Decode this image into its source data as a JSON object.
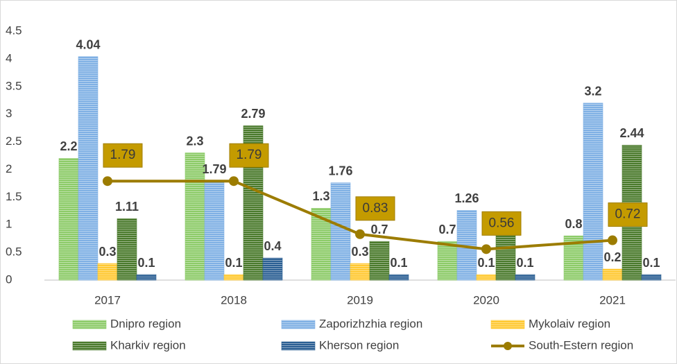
{
  "chart_data": {
    "type": "bar",
    "categories": [
      "2017",
      "2018",
      "2019",
      "2020",
      "2021"
    ],
    "series": [
      {
        "name": "Dnipro region",
        "color": "#8ccb68",
        "values": [
          2.2,
          2.3,
          1.3,
          0.7,
          0.8
        ]
      },
      {
        "name": "Zaporizhzhia region",
        "color": "#7fb0e4",
        "values": [
          4.04,
          1.79,
          1.76,
          1.26,
          3.2
        ]
      },
      {
        "name": "Mykolaiv region",
        "color": "#ffc830",
        "values": [
          0.3,
          0.1,
          0.3,
          0.1,
          0.2
        ]
      },
      {
        "name": "Kharkiv region",
        "color": "#4a7a2c",
        "values": [
          1.11,
          2.79,
          0.7,
          0.85,
          2.44
        ]
      },
      {
        "name": "Kherson region",
        "color": "#2b5f93",
        "values": [
          0.1,
          0.4,
          0.1,
          0.1,
          0.1
        ]
      },
      {
        "name": "South-Estern region",
        "type": "line",
        "color": "#9c7c00",
        "values": [
          1.79,
          1.79,
          0.83,
          0.56,
          0.72
        ]
      }
    ],
    "ylim": [
      0,
      4.5
    ],
    "yticks": [
      0,
      0.5,
      1,
      1.5,
      2,
      2.5,
      3,
      3.5,
      4,
      4.5
    ],
    "grid": false
  }
}
